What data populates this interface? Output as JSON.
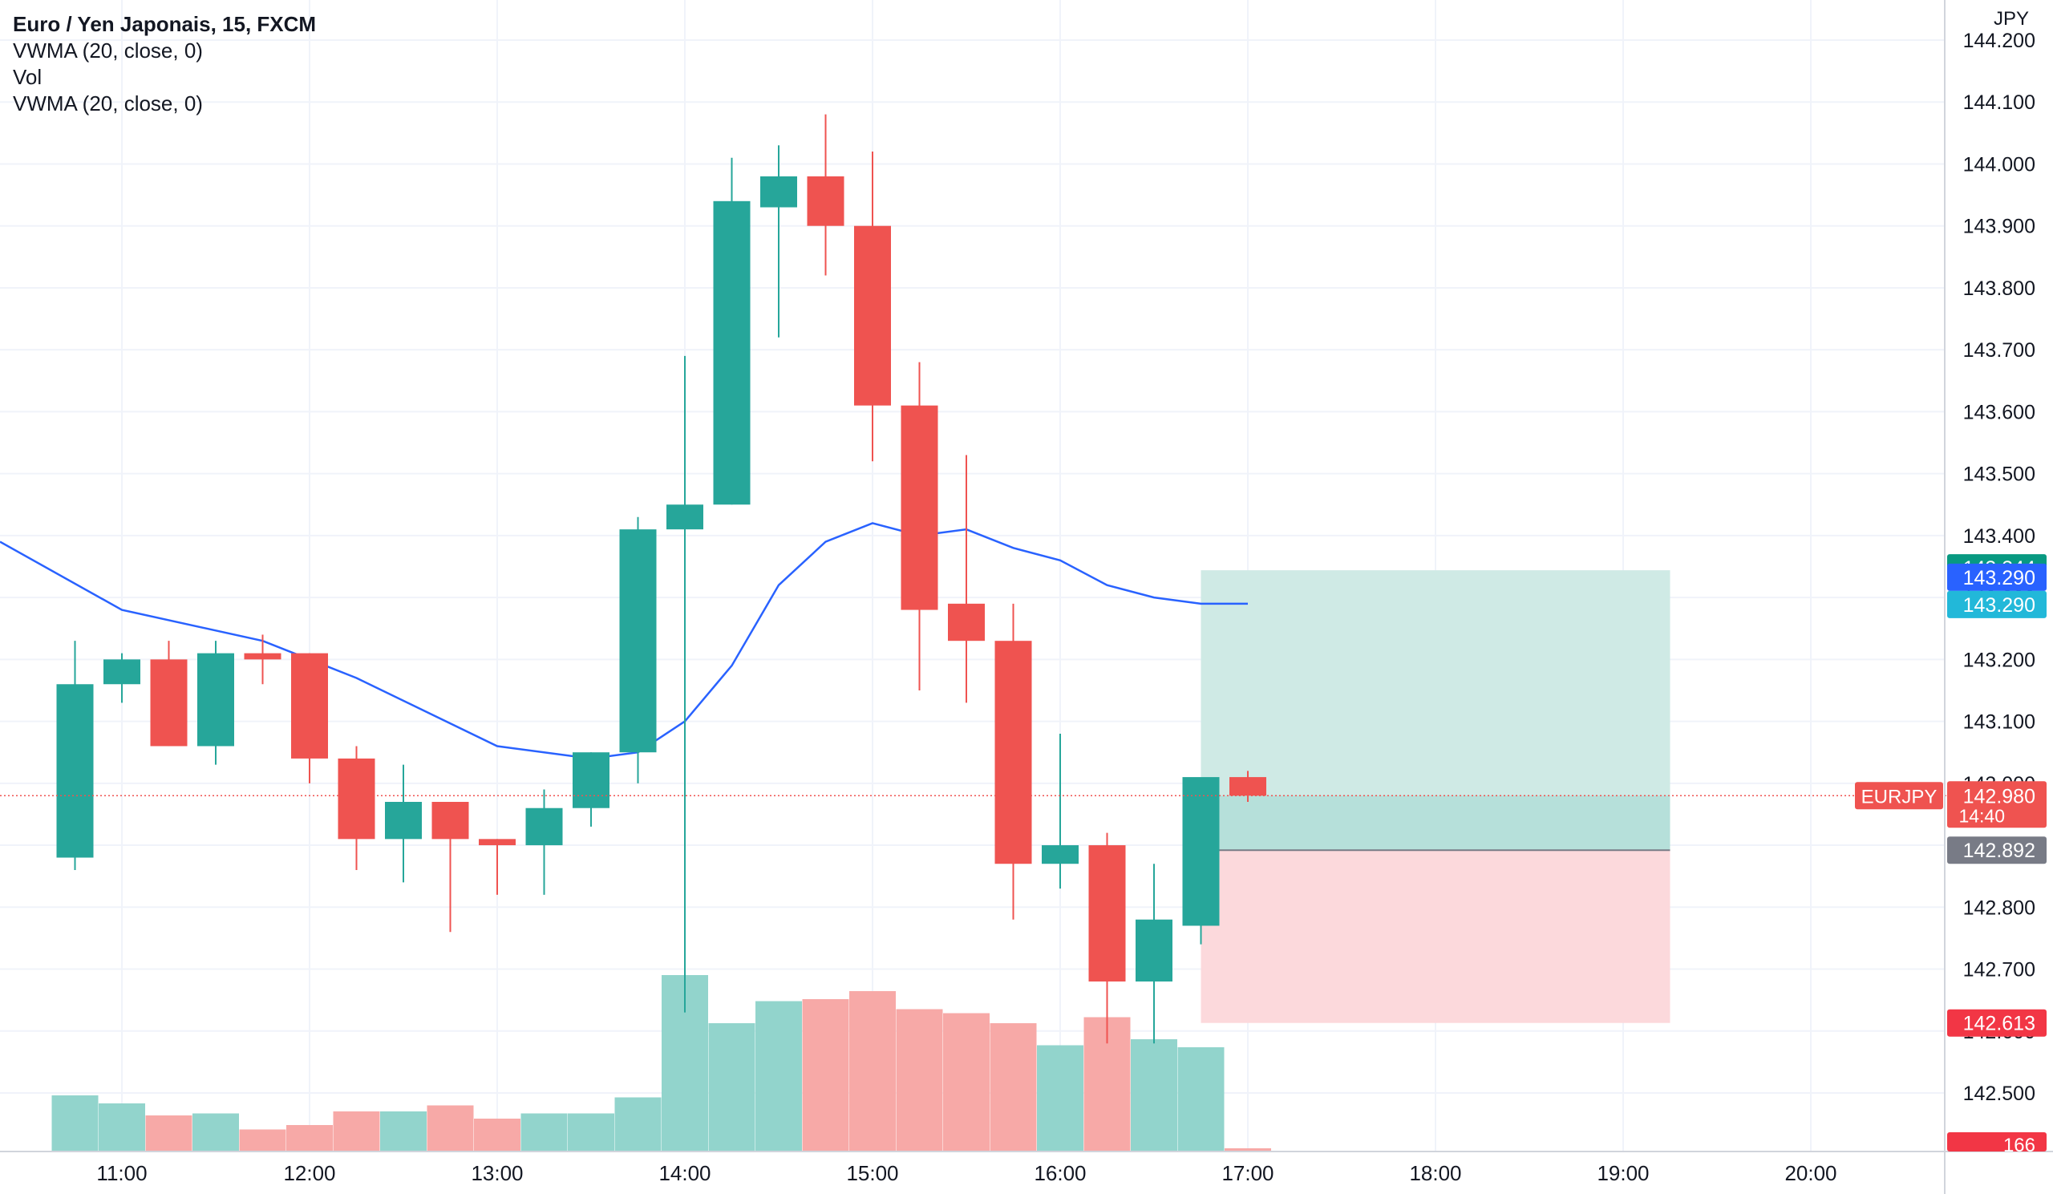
{
  "legend": {
    "title": "Euro / Yen Japonais, 15, FXCM",
    "indicator_1": "VWMA (20, close, 0)",
    "indicator_2": "Vol",
    "indicator_3": "VWMA (20, close, 0)"
  },
  "axis": {
    "currency": "JPY"
  },
  "price_labels": {
    "target": "143.344",
    "vwma_a": "143.290",
    "vwma_b": "143.290",
    "symbol": "EURJPY",
    "last_price": "142.980",
    "countdown": "14:40",
    "entry": "142.892",
    "stop": "142.613",
    "volume": "166"
  },
  "colors": {
    "bullish": "#26a69a",
    "bearish": "#ef5350",
    "bullish_volume": "#92d4cc",
    "bearish_volume": "#f7a9a7",
    "vwma_line": "#2962ff",
    "target_zone": "#cfeae5",
    "stop_zone": "#fcd9dc",
    "vwma_label_a": "#2962ff",
    "vwma_label_b": "#22b8d9",
    "target_label": "#089981",
    "entry_label": "#787b86",
    "stop_label": "#f23645"
  },
  "chart_data": {
    "type": "candlestick",
    "symbol": "EURJPY",
    "interval": "15",
    "ylim": [
      142.41,
      144.22
    ],
    "y_ticks": [
      "144.200",
      "144.100",
      "144.000",
      "143.900",
      "143.800",
      "143.700",
      "143.600",
      "143.500",
      "143.400",
      "143.300",
      "143.200",
      "143.100",
      "143.000",
      "142.900",
      "142.800",
      "142.700",
      "142.600",
      "142.500"
    ],
    "x_ticks": [
      "11:00",
      "12:00",
      "13:00",
      "14:00",
      "15:00",
      "16:00",
      "17:00",
      "18:00",
      "19:00",
      "20:00"
    ],
    "candles": [
      {
        "time": "10:45",
        "open": 142.88,
        "high": 143.23,
        "low": 142.86,
        "close": 143.16
      },
      {
        "time": "11:00",
        "open": 143.16,
        "high": 143.21,
        "low": 143.13,
        "close": 143.2
      },
      {
        "time": "11:15",
        "open": 143.2,
        "high": 143.23,
        "low": 143.06,
        "close": 143.06
      },
      {
        "time": "11:30",
        "open": 143.06,
        "high": 143.23,
        "low": 143.03,
        "close": 143.21
      },
      {
        "time": "11:45",
        "open": 143.21,
        "high": 143.24,
        "low": 143.16,
        "close": 143.2
      },
      {
        "time": "12:00",
        "open": 143.21,
        "high": 143.21,
        "low": 143.0,
        "close": 143.04
      },
      {
        "time": "12:15",
        "open": 143.04,
        "high": 143.06,
        "low": 142.86,
        "close": 142.91
      },
      {
        "time": "12:30",
        "open": 142.91,
        "high": 143.03,
        "low": 142.84,
        "close": 142.97
      },
      {
        "time": "12:45",
        "open": 142.97,
        "high": 142.97,
        "low": 142.76,
        "close": 142.91
      },
      {
        "time": "13:00",
        "open": 142.91,
        "high": 142.91,
        "low": 142.82,
        "close": 142.9
      },
      {
        "time": "13:15",
        "open": 142.9,
        "high": 142.99,
        "low": 142.82,
        "close": 142.96
      },
      {
        "time": "13:30",
        "open": 142.96,
        "high": 143.05,
        "low": 142.93,
        "close": 143.05
      },
      {
        "time": "13:45",
        "open": 143.05,
        "high": 143.43,
        "low": 143.0,
        "close": 143.41
      },
      {
        "time": "14:00",
        "open": 143.41,
        "high": 143.69,
        "low": 142.63,
        "close": 143.45
      },
      {
        "time": "14:15",
        "open": 143.45,
        "high": 144.01,
        "low": 143.45,
        "close": 143.94
      },
      {
        "time": "14:30",
        "open": 143.93,
        "high": 144.03,
        "low": 143.72,
        "close": 143.98
      },
      {
        "time": "14:45",
        "open": 143.98,
        "high": 144.08,
        "low": 143.82,
        "close": 143.9
      },
      {
        "time": "15:00",
        "open": 143.9,
        "high": 144.02,
        "low": 143.52,
        "close": 143.61
      },
      {
        "time": "15:15",
        "open": 143.61,
        "high": 143.68,
        "low": 143.15,
        "close": 143.28
      },
      {
        "time": "15:30",
        "open": 143.29,
        "high": 143.53,
        "low": 143.13,
        "close": 143.23
      },
      {
        "time": "15:45",
        "open": 143.23,
        "high": 143.29,
        "low": 142.78,
        "close": 142.87
      },
      {
        "time": "16:00",
        "open": 142.87,
        "high": 143.08,
        "low": 142.83,
        "close": 142.9
      },
      {
        "time": "16:15",
        "open": 142.9,
        "high": 142.92,
        "low": 142.58,
        "close": 142.68
      },
      {
        "time": "16:30",
        "open": 142.68,
        "high": 142.87,
        "low": 142.58,
        "close": 142.78
      },
      {
        "time": "16:45",
        "open": 142.77,
        "high": 143.0,
        "low": 142.74,
        "close": 143.01
      },
      {
        "time": "17:00",
        "open": 143.01,
        "high": 143.02,
        "low": 142.97,
        "close": 142.98
      }
    ],
    "volume": [
      {
        "time": "10:45",
        "value": 0.14
      },
      {
        "time": "11:00",
        "value": 0.12
      },
      {
        "time": "11:15",
        "value": 0.09
      },
      {
        "time": "11:30",
        "value": 0.095
      },
      {
        "time": "11:45",
        "value": 0.055
      },
      {
        "time": "12:00",
        "value": 0.066
      },
      {
        "time": "12:15",
        "value": 0.1
      },
      {
        "time": "12:30",
        "value": 0.1
      },
      {
        "time": "12:45",
        "value": 0.115
      },
      {
        "time": "13:00",
        "value": 0.082
      },
      {
        "time": "13:15",
        "value": 0.095
      },
      {
        "time": "13:30",
        "value": 0.095
      },
      {
        "time": "13:45",
        "value": 0.135
      },
      {
        "time": "14:00",
        "value": 0.44
      },
      {
        "time": "14:15",
        "value": 0.32
      },
      {
        "time": "14:30",
        "value": 0.375
      },
      {
        "time": "14:45",
        "value": 0.38
      },
      {
        "time": "15:00",
        "value": 0.4
      },
      {
        "time": "15:15",
        "value": 0.355
      },
      {
        "time": "15:30",
        "value": 0.345
      },
      {
        "time": "15:45",
        "value": 0.32
      },
      {
        "time": "16:00",
        "value": 0.265
      },
      {
        "time": "16:15",
        "value": 0.335
      },
      {
        "time": "16:30",
        "value": 0.28
      },
      {
        "time": "16:45",
        "value": 0.26
      },
      {
        "time": "17:00",
        "value": 0.008
      }
    ],
    "vwma": [
      {
        "time": "10:30",
        "value": 143.39
      },
      {
        "time": "11:00",
        "value": 143.28
      },
      {
        "time": "11:45",
        "value": 143.23
      },
      {
        "time": "12:15",
        "value": 143.17
      },
      {
        "time": "13:00",
        "value": 143.06
      },
      {
        "time": "13:30",
        "value": 143.04
      },
      {
        "time": "13:45",
        "value": 143.05
      },
      {
        "time": "14:00",
        "value": 143.1
      },
      {
        "time": "14:15",
        "value": 143.19
      },
      {
        "time": "14:30",
        "value": 143.32
      },
      {
        "time": "14:45",
        "value": 143.39
      },
      {
        "time": "15:00",
        "value": 143.42
      },
      {
        "time": "15:15",
        "value": 143.4
      },
      {
        "time": "15:30",
        "value": 143.41
      },
      {
        "time": "15:45",
        "value": 143.38
      },
      {
        "time": "16:00",
        "value": 143.36
      },
      {
        "time": "16:15",
        "value": 143.32
      },
      {
        "time": "16:30",
        "value": 143.3
      },
      {
        "time": "16:45",
        "value": 143.29
      },
      {
        "time": "17:00",
        "value": 143.29
      }
    ],
    "position": {
      "type": "long",
      "entry": 142.892,
      "target": 143.344,
      "stop": 142.613,
      "start_time": "16:45",
      "end_time": "19:15"
    }
  }
}
